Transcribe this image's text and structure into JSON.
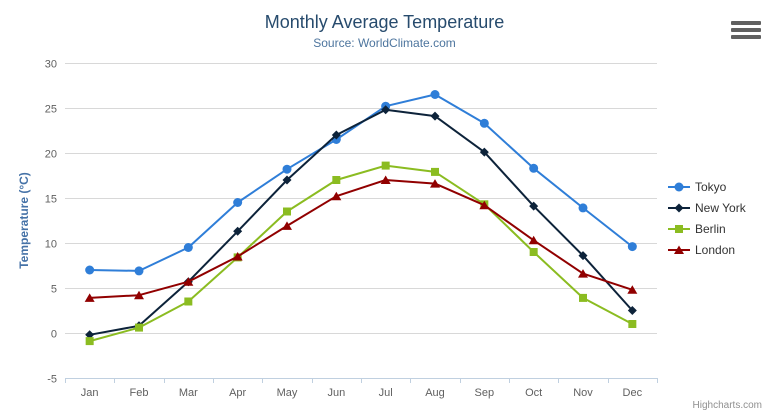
{
  "chart": {
    "title": "Monthly Average Temperature",
    "subtitle": "Source: WorldClimate.com",
    "credits": "Highcharts.com",
    "context_menu": "chart-context-menu"
  },
  "chart_data": {
    "type": "line",
    "title": "Monthly Average Temperature",
    "subtitle": "Source: WorldClimate.com",
    "categories": [
      "Jan",
      "Feb",
      "Mar",
      "Apr",
      "May",
      "Jun",
      "Jul",
      "Aug",
      "Sep",
      "Oct",
      "Nov",
      "Dec"
    ],
    "xlabel": "",
    "ylabel": "Temperature (°C)",
    "ylim": [
      -5,
      30
    ],
    "ytick_interval": 5,
    "ytick_labels": [
      "-5",
      "0",
      "5",
      "10",
      "15",
      "20",
      "25",
      "30"
    ],
    "grid": true,
    "legend_position": "right",
    "series": [
      {
        "name": "Tokyo",
        "color": "#2f7ed8",
        "marker": "circle",
        "values": [
          7.0,
          6.9,
          9.5,
          14.5,
          18.2,
          21.5,
          25.2,
          26.5,
          23.3,
          18.3,
          13.9,
          9.6
        ]
      },
      {
        "name": "New York",
        "color": "#0d233a",
        "marker": "diamond",
        "values": [
          -0.2,
          0.8,
          5.7,
          11.3,
          17.0,
          22.0,
          24.8,
          24.1,
          20.1,
          14.1,
          8.6,
          2.5
        ]
      },
      {
        "name": "Berlin",
        "color": "#8bbc21",
        "marker": "square",
        "values": [
          -0.9,
          0.6,
          3.5,
          8.4,
          13.5,
          17.0,
          18.6,
          17.9,
          14.3,
          9.0,
          3.9,
          1.0
        ]
      },
      {
        "name": "London",
        "color": "#910000",
        "marker": "triangle",
        "values": [
          3.9,
          4.2,
          5.7,
          8.5,
          11.9,
          15.2,
          17.0,
          16.6,
          14.2,
          10.3,
          6.6,
          4.8
        ]
      }
    ],
    "colors": {
      "title": "#274b6d",
      "subtitle": "#4d759e",
      "yaxis_title": "#4572a7",
      "tick_label": "#606060",
      "grid_line": "#d8d8d8",
      "axis_line": "#c0d0e0",
      "legend_text": "#333333",
      "credits_text": "#909090"
    }
  }
}
